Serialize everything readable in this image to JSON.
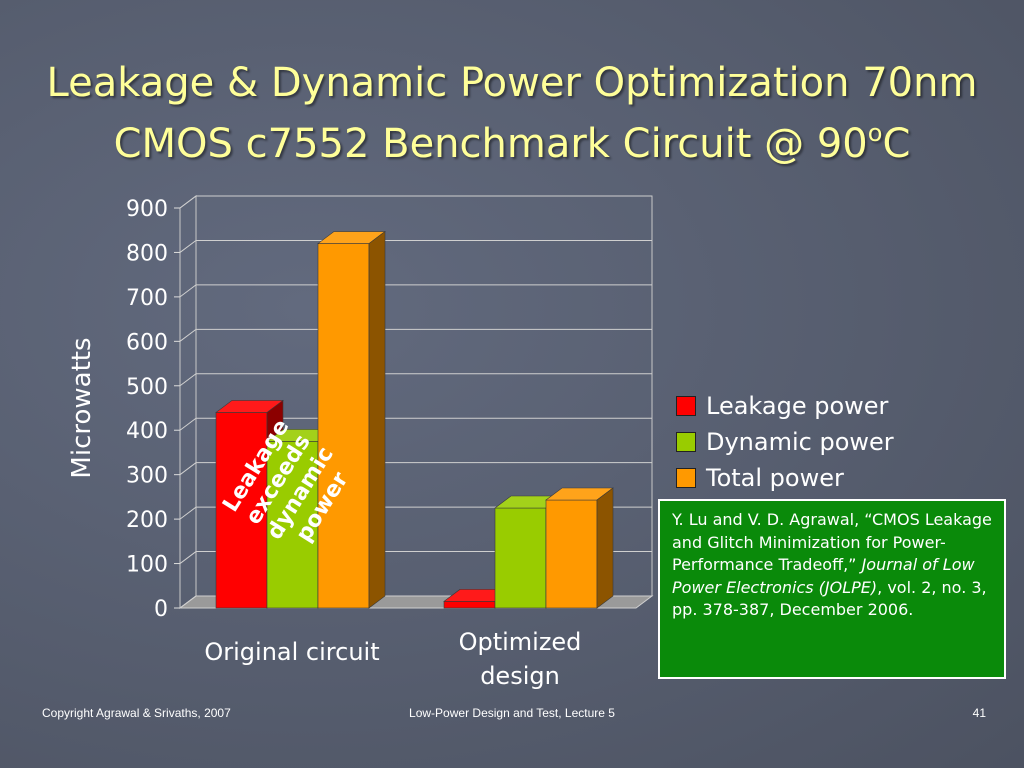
{
  "slide": {
    "title_line1": "Leakage & Dynamic Power Optimization 70nm",
    "title_line2_pre": "CMOS c7552 Benchmark Circuit @ 90",
    "title_sup": "o",
    "title_post": "C"
  },
  "chart_data": {
    "type": "bar",
    "title": "",
    "xlabel": "",
    "ylabel": "Microwatts",
    "ylim": [
      0,
      900
    ],
    "yticks": [
      0,
      100,
      200,
      300,
      400,
      500,
      600,
      700,
      800,
      900
    ],
    "categories": [
      "Original circuit",
      "Optimized design"
    ],
    "series": [
      {
        "name": "Leakage power",
        "values": [
          440,
          15
        ],
        "color": "#ff0000"
      },
      {
        "name": "Dynamic power",
        "values": [
          375,
          225
        ],
        "color": "#99cc00"
      },
      {
        "name": "Total power",
        "values": [
          820,
          243
        ],
        "color": "#ff9900"
      }
    ],
    "grid": true,
    "legend_position": "right",
    "three_d": true,
    "annotation": {
      "lines": [
        "Leakage",
        "exceeds",
        "dynamic",
        "power"
      ],
      "color": "#ffffff"
    }
  },
  "citation": {
    "part1": "Y. Lu and V. D. Agrawal, “CMOS Leakage and Glitch Minimization for Power-Performance Tradeoff,” ",
    "journal": "Journal of Low Power Electronics (JOLPE)",
    "part2": ", vol. 2, no. 3, pp. 378-387, December 2006."
  },
  "footer": {
    "left": "Copyright Agrawal & Srivaths, 2007",
    "center": "Low-Power Design and Test, Lecture 5",
    "page": "41"
  }
}
